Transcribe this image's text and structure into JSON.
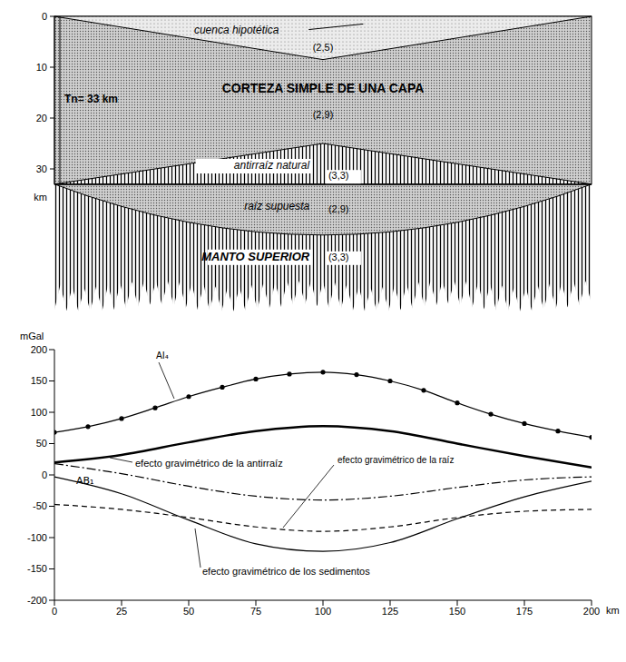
{
  "diagram": {
    "x_range": [
      0,
      200
    ],
    "depth_axis": {
      "ticks": [
        0,
        10,
        20,
        30
      ],
      "unit": "km"
    },
    "Tn_label": "Tn= 33 km",
    "Tn": 33,
    "basin": {
      "label": "cuenca hipotética",
      "density": "(2,5)",
      "max_depth": 8.5
    },
    "crust": {
      "label": "CORTEZA SIMPLE DE UNA CAPA",
      "density": "(2,9)"
    },
    "antiroot": {
      "label": "antirraíz natural",
      "density": "(3,3)",
      "top_depth": 25
    },
    "root": {
      "label": "raíz supuesta",
      "density": "(2,9)",
      "bottom_depth": 43
    },
    "mantle": {
      "label": "MANTO SUPERIOR",
      "density": "(3,3)",
      "base_depth": 55
    }
  },
  "chart_data": {
    "type": "line",
    "x_label": "km",
    "y_label": "mGal",
    "xlim": [
      0,
      200
    ],
    "xticks": [
      0,
      25,
      50,
      75,
      100,
      125,
      150,
      175,
      200
    ],
    "ylim": [
      -200,
      200
    ],
    "yticks": [
      -200,
      -150,
      -100,
      -50,
      0,
      50,
      100,
      150,
      200
    ],
    "grid": false,
    "series": [
      {
        "name": "AI₄",
        "color": "#000000",
        "line_style": "solid",
        "marker": "circle",
        "x": [
          0,
          12.5,
          25,
          37.5,
          50,
          62.5,
          75,
          87.5,
          100,
          112.5,
          125,
          137.5,
          150,
          162.5,
          175,
          187.5,
          200
        ],
        "values": [
          68,
          77,
          90,
          107,
          125,
          140,
          153,
          161,
          164,
          160,
          150,
          135,
          115,
          97,
          82,
          70,
          60
        ]
      },
      {
        "name": "efecto gravimétrico de la antirraíz",
        "color": "#000000",
        "line_style": "solid",
        "marker": "none",
        "x": [
          0,
          25,
          50,
          75,
          100,
          125,
          150,
          175,
          200
        ],
        "values": [
          20,
          32,
          52,
          70,
          78,
          70,
          50,
          30,
          12
        ]
      },
      {
        "name": "AB₁",
        "color": "#000000",
        "line_style": "dashdot",
        "marker": "none",
        "x": [
          0,
          25,
          50,
          75,
          100,
          125,
          150,
          175,
          200
        ],
        "values": [
          18,
          2,
          -18,
          -34,
          -40,
          -34,
          -20,
          -8,
          -3
        ]
      },
      {
        "name": "efecto gravimétrico de la raíz",
        "color": "#000000",
        "line_style": "dashed",
        "marker": "none",
        "x": [
          0,
          25,
          50,
          75,
          100,
          125,
          150,
          175,
          200
        ],
        "values": [
          -47,
          -55,
          -68,
          -83,
          -90,
          -83,
          -68,
          -58,
          -55
        ]
      },
      {
        "name": "efecto gravimétrico de los sedimentos",
        "color": "#000000",
        "line_style": "solid",
        "marker": "none",
        "x": [
          0,
          25,
          50,
          75,
          100,
          125,
          150,
          175,
          200
        ],
        "values": [
          -3,
          -30,
          -72,
          -110,
          -122,
          -108,
          -70,
          -35,
          -10
        ]
      }
    ]
  }
}
